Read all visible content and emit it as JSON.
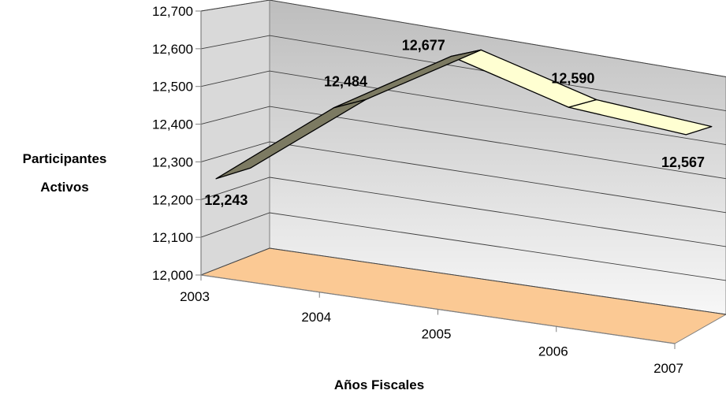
{
  "chart_data": {
    "type": "line",
    "style": "3d-ribbon",
    "categories": [
      "2003",
      "2004",
      "2005",
      "2006",
      "2007"
    ],
    "values": [
      12243,
      12484,
      12677,
      12590,
      12567
    ],
    "data_labels": [
      "12,243",
      "12,484",
      "12,677",
      "12,590",
      "12,567"
    ],
    "ylabel_lines": [
      "Participantes",
      "Activos"
    ],
    "xlabel": "Años Fiscales",
    "ylim": [
      12000,
      12700
    ],
    "y_ticks": [
      "12,000",
      "12,100",
      "12,200",
      "12,300",
      "12,400",
      "12,500",
      "12,600",
      "12,700"
    ],
    "grid": true,
    "legend": "none"
  },
  "colors": {
    "floor": "#fbc994",
    "back_wall_top": "#bdbdbd",
    "back_wall_bottom": "#f7f7f7",
    "side_wall": "#d9d9d9",
    "ribbon_rising": "#7c7a62",
    "ribbon_falling": "#ffffd2",
    "gridline": "#3f3f3f",
    "axis": "#808080"
  }
}
